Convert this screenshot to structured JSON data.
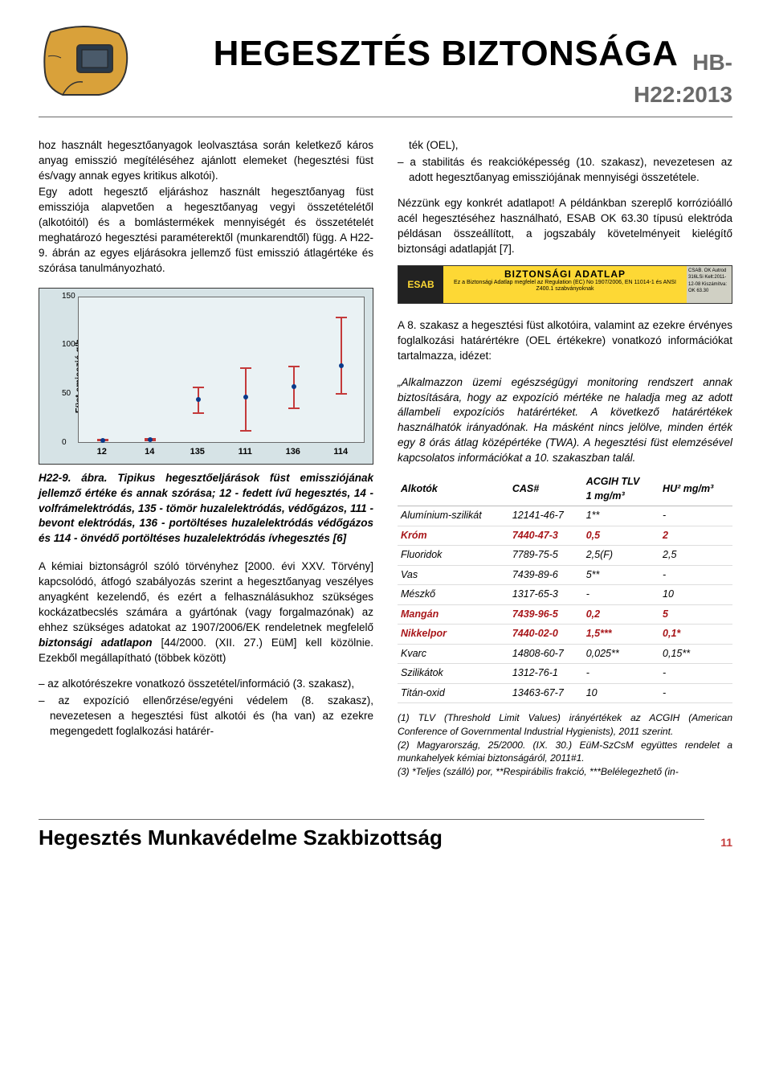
{
  "header": {
    "title": "HEGESZTÉS BIZTONSÁGA",
    "code": "HB-H22:2013"
  },
  "col_left": {
    "p1": "hoz használt hegesztőanyagok leolvasztása során keletkező káros anyag emisszió megítéléséhez ajánlott elemeket (hegesztési füst és/vagy annak egyes kritikus alkotói).",
    "p2": "Egy adott hegesztő eljáráshoz használt hegesztőanyag füst emissziója alapvetően a hegesztőanyag vegyi összetételétől (alkotóitól) és a bomlástermékek mennyiségét és összetételét meghatározó hegesztési paraméterektől (munkarendtől) függ. A H22-9. ábrán az egyes eljárásokra jellemző füst emisszió átlagértéke és szórása tanulmányozható.",
    "caption": "H22-9. ábra. Tipikus hegesztőeljárások füst emissziójának jellemző értéke és annak szórása; 12 - fedett ívű hegesztés, 14 - volfrámelektródás, 135 - tömör huzalelektródás, védőgázos, 111 - bevont elektródás, 136 - portöltéses huzalelektródás védőgázos és 114 - önvédő portöltéses huzalelektródás ívhegesztés [6]",
    "p3a": "A kémiai biztonságról szóló törvényhez [2000. évi XXV. Törvény] kapcsolódó, átfogó szabályozás szerint a hegesztőanyag veszélyes anyagként kezelendő, és ezért a felhasználásukhoz szükséges kockázatbecslés számára a gyártónak (vagy forgalmazónak) az ehhez szükséges adatokat az 1907/2006/EK rendeletnek megfelelő ",
    "p3b_strong": "biztonsági adatlapon",
    "p3c": " [44/2000. (XII. 27.) EüM] kell közölnie. Ezekből megállapítható (többek között)",
    "li1": "– az alkotórészekre vonatkozó összetétel/információ (3. szakasz),",
    "li2": "– az expozíció ellenőrzése/egyéni védelem (8. szakasz), nevezetesen a hegesztési füst alkotói és (ha van) az ezekre megengedett foglalkozási határér-"
  },
  "chart": {
    "y_label": "Füst emisszió g/h",
    "y_ticks": [
      0,
      50,
      100,
      150
    ],
    "x_labels": [
      "12",
      "14",
      "135",
      "111",
      "136",
      "114"
    ],
    "series": [
      {
        "x": 1,
        "mean": 3,
        "lo": 2,
        "hi": 5
      },
      {
        "x": 2,
        "mean": 4,
        "lo": 2,
        "hi": 6
      },
      {
        "x": 3,
        "mean": 45,
        "lo": 30,
        "hi": 58
      },
      {
        "x": 4,
        "mean": 48,
        "lo": 12,
        "hi": 78
      },
      {
        "x": 5,
        "mean": 58,
        "lo": 35,
        "hi": 80
      },
      {
        "x": 6,
        "mean": 80,
        "lo": 50,
        "hi": 130
      }
    ],
    "y_max": 150,
    "line_color": "#c43a3a",
    "dot_color": "#0a3a8a",
    "plot_bg": "#eaf2f4",
    "frame_bg": "#d6e3e6"
  },
  "col_right": {
    "p1_top": "ték (OEL),",
    "li3": "– a stabilitás és reakcióképesség (10. szakasz), nevezetesen az adott hegesztőanyag emissziójának mennyiségi összetétele.",
    "p2": "Nézzünk egy konkrét adatlapot! A példánkban szereplő korrózióálló acél hegesztéséhez használható, ESAB OK 63.30 típusú elektróda példásan összeállított, a jogszabály követelményeit kielégítő biztonsági adatlapját [7].",
    "sds": {
      "brand": "ESAB",
      "title": "BIZTONSÁGI ADATLAP",
      "sub": "Ez a Biztonsági Adatlap megfelel az Regulation (EC) No 1907/2006, EN 11014-1 és ANSI Z400.1 szabványoknak",
      "right": "CSAB. OK Autrod 316LSi Kelt:2011-12-08 Kiszámítva: OK 63.30"
    },
    "p3": "A 8. szakasz a hegesztési füst alkotóira, valamint az ezekre érvényes foglalkozási határértékre (OEL értékekre) vonatkozó információkat tartalmazza, idézet:",
    "quote": "„Alkalmazzon üzemi egészségügyi monitoring rendszert annak biztosítására, hogy az expozíció mértéke ne haladja meg az adott állambeli expozíciós határértéket. A következő határértékek használhatók irányadónak. Ha másként nincs jelölve, minden érték egy 8 órás átlag középértéke (TWA). A hegesztési füst elemzésével kapcsolatos információkat a 10. szakaszban talál.",
    "table": {
      "headers": [
        "Alkotók",
        "CAS#",
        "ACGIH TLV 1 mg/m³",
        "HU² mg/m³"
      ],
      "rows": [
        {
          "cells": [
            "Alumínium-szilikát",
            "12141-46-7",
            "1**",
            "-"
          ],
          "hl": false
        },
        {
          "cells": [
            "Króm",
            "7440-47-3",
            "0,5",
            "2"
          ],
          "hl": true
        },
        {
          "cells": [
            "Fluoridok",
            "7789-75-5",
            "2,5(F)",
            "2,5"
          ],
          "hl": false
        },
        {
          "cells": [
            "Vas",
            "7439-89-6",
            "5**",
            "-"
          ],
          "hl": false
        },
        {
          "cells": [
            "Mészkő",
            "1317-65-3",
            "-",
            "10"
          ],
          "hl": false
        },
        {
          "cells": [
            "Mangán",
            "7439-96-5",
            "0,2",
            "5"
          ],
          "hl": true
        },
        {
          "cells": [
            "Nikkelpor",
            "7440-02-0",
            "1,5***",
            "0,1*"
          ],
          "hl": true
        },
        {
          "cells": [
            "Kvarc",
            "14808-60-7",
            "0,025**",
            "0,15**"
          ],
          "hl": false
        },
        {
          "cells": [
            "Szilikátok",
            "1312-76-1",
            "-",
            "-"
          ],
          "hl": false
        },
        {
          "cells": [
            "Titán-oxid",
            "13463-67-7",
            "10",
            "-"
          ],
          "hl": false
        }
      ]
    },
    "footnotes": [
      "(1) TLV (Threshold Limit Values) irányértékek az ACGIH (American Conference of Governmental Industrial Hygienists), 2011 szerint.",
      "(2) Magyarország, 25/2000. (IX. 30.) EüM-SzCsM együttes rendelet a munkahelyek kémiai biztonságáról, 2011#1.",
      "(3) *Teljes (szálló) por, **Respirábilis frakció, ***Belélegezhető (in-"
    ]
  },
  "footer": {
    "committee": "Hegesztés Munkavédelme Szakbizottság",
    "page": "11"
  }
}
